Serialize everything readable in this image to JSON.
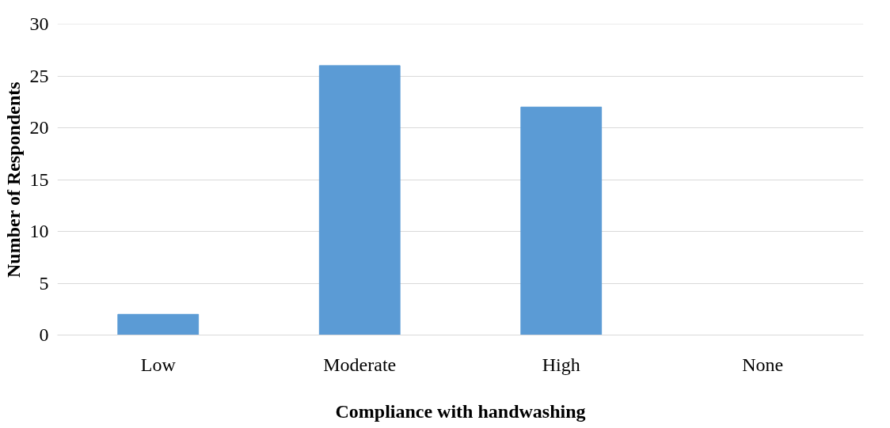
{
  "chart_data": {
    "type": "bar",
    "xlabel": "Compliance with handwashing",
    "ylabel": "Number of Respondents",
    "categories": [
      "Low",
      "Moderate",
      "High",
      "None"
    ],
    "values": [
      2,
      26,
      22,
      0
    ],
    "color": "#5b9bd5",
    "ylim": [
      0,
      30
    ],
    "yticks": [
      0,
      5,
      10,
      15,
      20,
      25,
      30
    ],
    "grid": "y"
  }
}
